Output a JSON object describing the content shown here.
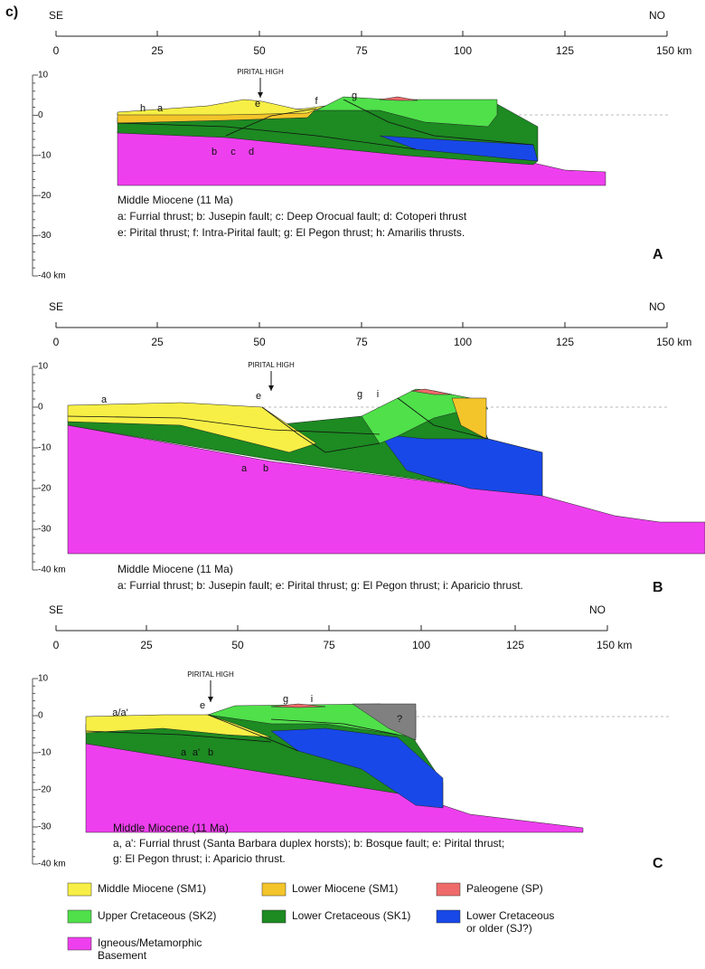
{
  "figure_label": "c)",
  "panels": [
    {
      "left_label": "SE",
      "right_label": "NO",
      "distance_ticks": [
        "0",
        "25",
        "50",
        "75",
        "100",
        "125",
        "150 km"
      ],
      "depth_ticks": [
        "10",
        "0",
        "-10",
        "-20",
        "-30",
        "-40 km"
      ],
      "pirital_high": "PIRITAL HIGH",
      "fault_labels": [
        "h",
        "a",
        "e",
        "f",
        "g",
        "b",
        "c",
        "d"
      ],
      "caption_title": "Middle Miocene (11 Ma)",
      "caption_lines": [
        "a: Furrial thrust; b: Jusepin fault; c: Deep Orocual fault; d: Cotoperi thrust",
        "e: Pirital thrust; f: Intra-Pirital fault; g: El Pegon thrust; h: Amarilis thrusts."
      ],
      "panel_letter": "A"
    },
    {
      "left_label": "SE",
      "right_label": "NO",
      "distance_ticks": [
        "0",
        "25",
        "50",
        "75",
        "100",
        "125",
        "150 km"
      ],
      "depth_ticks": [
        "10",
        "0",
        "-10",
        "-20",
        "-30",
        "-40 km"
      ],
      "pirital_high": "PIRITAL HIGH",
      "fault_labels": [
        "a",
        "e",
        "g",
        "i",
        "a",
        "b"
      ],
      "caption_title": "Middle Miocene (11 Ma)",
      "caption_lines": [
        "a: Furrial thrust; b: Jusepin fault; e: Pirital thrust; g: El Pegon thrust; i: Aparicio thrust."
      ],
      "panel_letter": "B"
    },
    {
      "left_label": "SE",
      "right_label": "NO",
      "distance_ticks": [
        "0",
        "25",
        "50",
        "75",
        "100",
        "125",
        "150 km"
      ],
      "depth_ticks": [
        "10",
        "0",
        "-10",
        "-20",
        "-30",
        "-40 km"
      ],
      "pirital_high": "PIRITAL HIGH",
      "fault_labels": [
        "a/a'",
        "e",
        "g",
        "i",
        "a",
        "a'",
        "b",
        "?"
      ],
      "caption_title": "Middle Miocene (11 Ma)",
      "caption_lines": [
        "a, a': Furrial thrust (Santa Barbara duplex horsts); b: Bosque fault; e: Pirital thrust;",
        "g: El Pegon thrust; i: Aparicio thrust."
      ],
      "panel_letter": "C"
    }
  ],
  "legend": [
    {
      "label": [
        "Middle Miocene (SM1)"
      ],
      "color": "#f7ef45"
    },
    {
      "label": [
        "Lower Miocene (SM1)"
      ],
      "color": "#f4c52a"
    },
    {
      "label": [
        "Paleogene (SP)"
      ],
      "color": "#ef6b6b"
    },
    {
      "label": [
        "Upper Cretaceous (SK2)"
      ],
      "color": "#4fe04a"
    },
    {
      "label": [
        "Lower Cretaceous (SK1)"
      ],
      "color": "#1d8a22"
    },
    {
      "label": [
        "Lower Cretaceous",
        "or older (SJ?)"
      ],
      "color": "#1848e8"
    },
    {
      "label": [
        "Igneous/Metamorphic",
        "Basement"
      ],
      "color": "#ee3fee"
    }
  ]
}
